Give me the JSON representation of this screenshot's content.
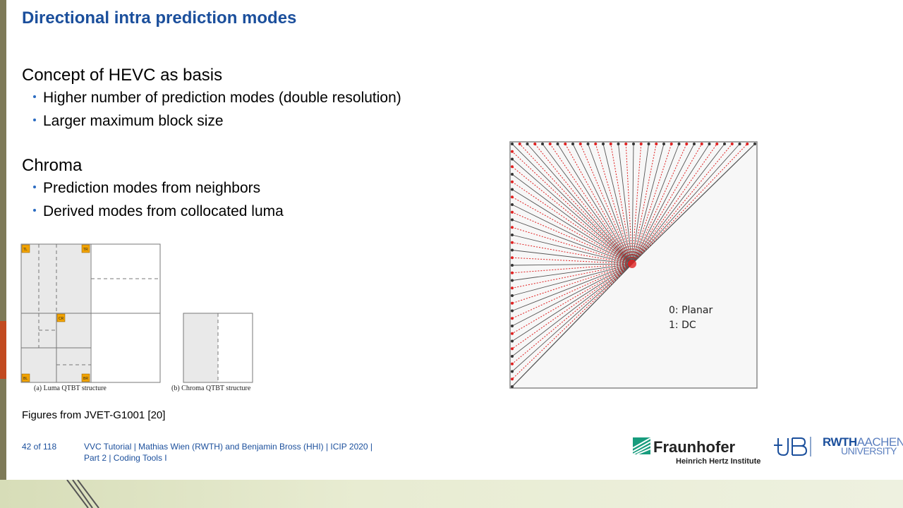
{
  "slide": {
    "title": "Directional intra prediction modes",
    "sections": [
      {
        "heading": "Concept of HEVC as basis",
        "bullets": [
          "Higher number of prediction modes (double resolution)",
          "Larger maximum block size"
        ]
      },
      {
        "heading": "Chroma",
        "bullets": [
          "Prediction modes from neighbors",
          "Derived modes from collocated luma"
        ]
      }
    ],
    "figure_note": "Figures from JVET-G1001 [20]"
  },
  "figures": {
    "luma_caption": "(a) Luma QTBT structure",
    "chroma_caption": "(b) Chroma QTBT structure",
    "corner_labels": [
      "TL",
      "TR",
      "CR",
      "BL",
      "BR"
    ],
    "mode_labels": [
      "0: Planar",
      "1: DC"
    ]
  },
  "footer": {
    "page": "42 of 118",
    "line1": "VVC Tutorial  |  Mathias Wien (RWTH) and Benjamin Bross (HHI)  |  ICIP 2020  |",
    "line2": "Part 2  |  Coding Tools I"
  },
  "logos": {
    "fraunhofer": "Fraunhofer",
    "fraunhofer_sub": "Heinrich Hertz Institute",
    "rwth_main": "RWTH",
    "rwth_aachen": "AACHEN",
    "rwth_university": "UNIVERSITY"
  },
  "colors": {
    "title": "#1b4f9c",
    "bullet": "#2a6bc1",
    "side_bar": "#7e7a58",
    "side_accent": "#c24a20",
    "red_arrows": "#e02020",
    "dark_arrows": "#555555",
    "badge": "#f2a300"
  }
}
